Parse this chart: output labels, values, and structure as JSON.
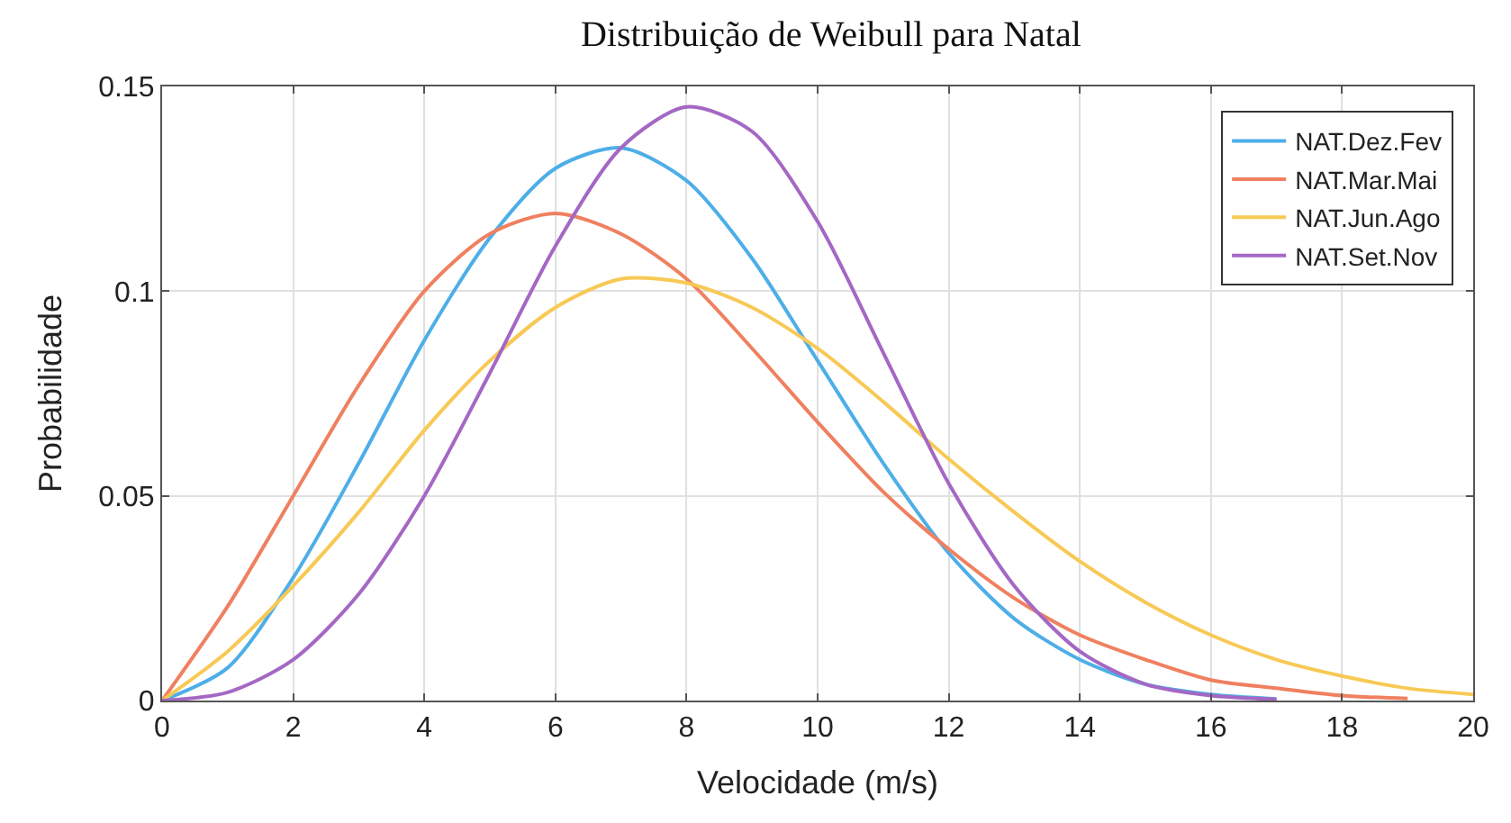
{
  "chart_data": {
    "type": "line",
    "title": "Distribuição de Weibull para Natal",
    "xlabel": "Velocidade (m/s)",
    "ylabel": "Probabilidade",
    "x": [
      0,
      1,
      2,
      3,
      4,
      5,
      6,
      7,
      8,
      9,
      10,
      11,
      12,
      13,
      14,
      15,
      16,
      17,
      18,
      19,
      20
    ],
    "series": [
      {
        "name": "NAT.Dez.Fev",
        "color": "#4daee8",
        "values": [
          0,
          0.008,
          0.03,
          0.058,
          0.088,
          0.113,
          0.13,
          0.135,
          0.127,
          0.108,
          0.083,
          0.058,
          0.036,
          0.02,
          0.01,
          0.004,
          0.0015,
          0.0004,
          null,
          null,
          null
        ]
      },
      {
        "name": "NAT.Mar.Mai",
        "color": "#ef8060",
        "values": [
          0,
          0.023,
          0.05,
          0.077,
          0.1,
          0.114,
          0.119,
          0.114,
          0.103,
          0.086,
          0.068,
          0.051,
          0.037,
          0.025,
          0.016,
          0.01,
          0.005,
          0.003,
          0.0012,
          0.0005,
          null
        ]
      },
      {
        "name": "NAT.Jun.Ago",
        "color": "#f7c955",
        "values": [
          0,
          0.012,
          0.028,
          0.046,
          0.066,
          0.083,
          0.096,
          0.103,
          0.102,
          0.096,
          0.086,
          0.073,
          0.059,
          0.046,
          0.034,
          0.024,
          0.016,
          0.01,
          0.006,
          0.003,
          0.0015
        ]
      },
      {
        "name": "NAT.Set.Nov",
        "color": "#a468c4",
        "values": [
          0,
          0.002,
          0.01,
          0.026,
          0.05,
          0.08,
          0.111,
          0.135,
          0.145,
          0.139,
          0.117,
          0.085,
          0.053,
          0.028,
          0.012,
          0.004,
          0.0012,
          0.0003,
          null,
          null,
          null
        ]
      }
    ],
    "xlim": [
      0,
      20
    ],
    "xticks": [
      0,
      2,
      4,
      6,
      8,
      10,
      12,
      14,
      16,
      18,
      20
    ],
    "ylim": [
      0,
      0.15
    ],
    "yticks": [
      {
        "value": 0,
        "label": "0"
      },
      0.05,
      0.1,
      0.15
    ],
    "grid": true,
    "legend": "top right",
    "line_style": "solid",
    "marker": "none"
  }
}
